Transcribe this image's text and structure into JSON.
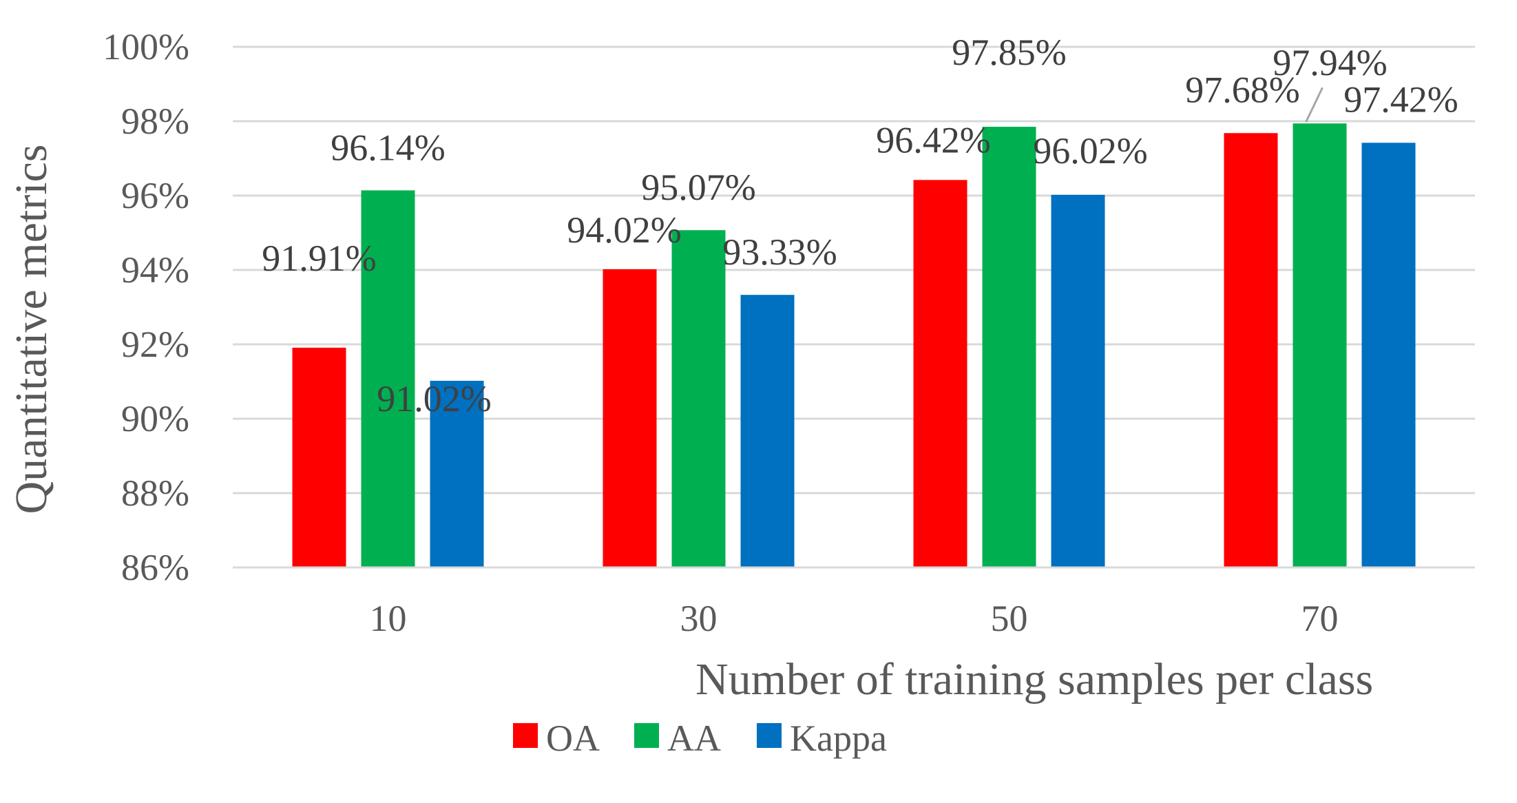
{
  "chart_data": {
    "type": "bar",
    "title": "",
    "xlabel": "Number of training samples per class",
    "ylabel": "Quantitative metrics",
    "categories": [
      "10",
      "30",
      "50",
      "70"
    ],
    "ylim": [
      86,
      100
    ],
    "ytick_step": 2,
    "ytick_format_suffix": "%",
    "grid": true,
    "legend_position": "bottom-center",
    "series": [
      {
        "name": "OA",
        "color": "#ff0000",
        "values": [
          91.91,
          94.02,
          96.42,
          97.68
        ],
        "labels": [
          "91.91%",
          "94.02%",
          "96.42%",
          "97.68%"
        ]
      },
      {
        "name": "AA",
        "color": "#00b050",
        "values": [
          96.14,
          95.07,
          97.85,
          97.94
        ],
        "labels": [
          "96.14%",
          "95.07%",
          "97.85%",
          "97.94%"
        ]
      },
      {
        "name": "Kappa",
        "color": "#0070c0",
        "values": [
          91.02,
          93.33,
          96.02,
          97.42
        ],
        "labels": [
          "91.02%",
          "93.33%",
          "96.02%",
          "97.42%"
        ]
      }
    ]
  }
}
